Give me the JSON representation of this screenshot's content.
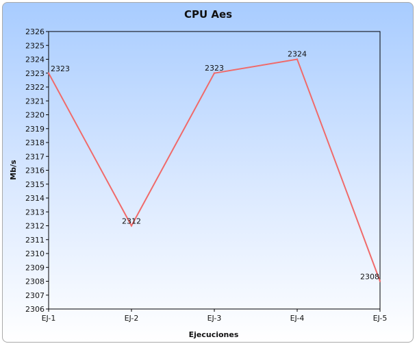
{
  "chart_data": {
    "type": "line",
    "title": "CPU Aes",
    "xlabel": "Ejecuciones",
    "ylabel": "Mb/s",
    "categories": [
      "EJ-1",
      "EJ-2",
      "EJ-3",
      "EJ-4",
      "EJ-5"
    ],
    "series": [
      {
        "values": [
          2323,
          2312,
          2323,
          2324,
          2308
        ],
        "color": "#f06a6a"
      }
    ],
    "data_labels": [
      "2323",
      "2312",
      "2323",
      "2324",
      "2308"
    ],
    "ylim": [
      2306,
      2326
    ],
    "ytick_step": 1,
    "grid": false,
    "legend": "none"
  }
}
